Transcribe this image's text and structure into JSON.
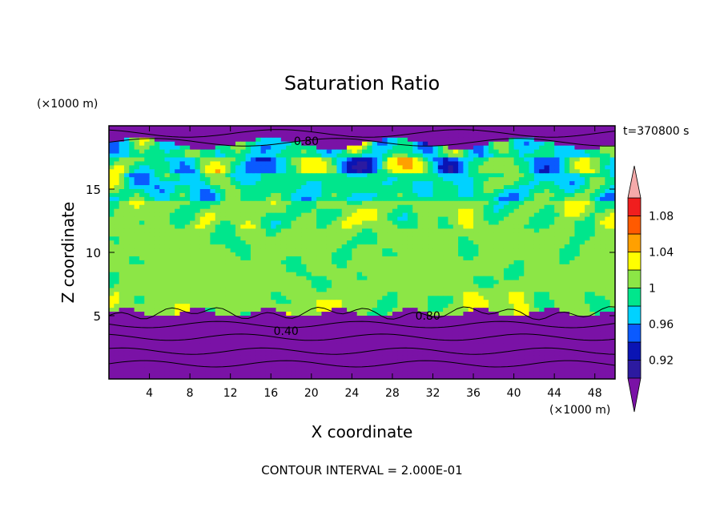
{
  "chart_data": {
    "type": "heatmap",
    "title": "Saturation Ratio",
    "xlabel": "X coordinate",
    "ylabel": "Z coordinate",
    "x_unit": "(×1000 m)",
    "y_unit": "(×1000 m)",
    "time_label": "t=370800 s",
    "footer": "CONTOUR INTERVAL = 2.000E-01",
    "xlim": [
      0,
      50
    ],
    "ylim": [
      0,
      20
    ],
    "x_ticks": [
      4,
      8,
      12,
      16,
      20,
      24,
      28,
      32,
      36,
      40,
      44,
      48
    ],
    "y_ticks": [
      5,
      10,
      15
    ],
    "contour_labels": [
      {
        "text": "0.80",
        "x": 19.5,
        "z": 18.8
      },
      {
        "text": "0.40",
        "x": 17.5,
        "z": 3.8
      },
      {
        "text": "0.80",
        "x": 31.5,
        "z": 5.0
      }
    ],
    "colorbar": {
      "levels": [
        0.9,
        0.92,
        0.94,
        0.96,
        0.98,
        1.0,
        1.02,
        1.04,
        1.06,
        1.08,
        1.1
      ],
      "tick_labels": [
        "0.92",
        "0.96",
        "1",
        "1.04",
        "1.08"
      ],
      "tick_values": [
        0.92,
        0.96,
        1.0,
        1.04,
        1.08
      ],
      "colors": [
        "#2c1aa0",
        "#0a14b4",
        "#0a5aff",
        "#00d2ff",
        "#00e68c",
        "#8ce646",
        "#ffff00",
        "#ffa000",
        "#ff5a00",
        "#f01e1e"
      ],
      "under_color": "#7a12a6",
      "over_color": "#f5aaaa"
    },
    "grid": false,
    "legend": "right"
  }
}
